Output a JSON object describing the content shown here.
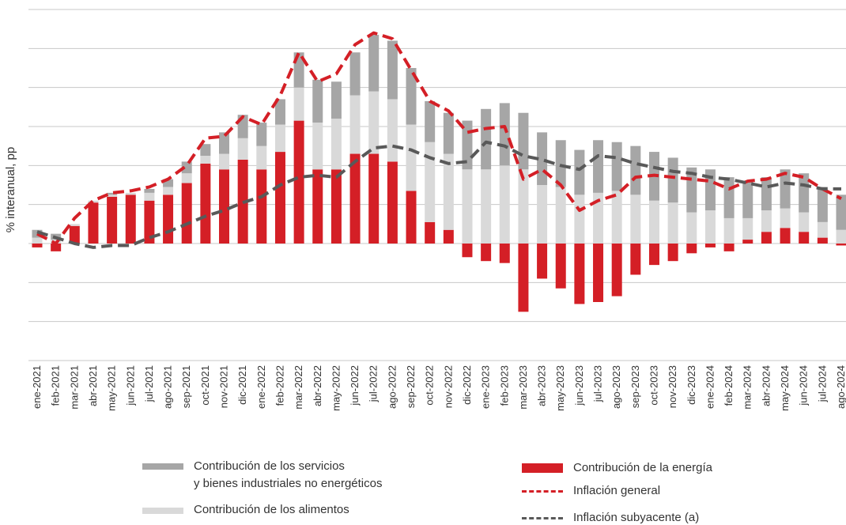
{
  "chart_data": {
    "type": "bar",
    "y_label": "% interanual, pp",
    "categories": [
      "ene-2021",
      "feb-2021",
      "mar-2021",
      "abr-2021",
      "may-2021",
      "jun-2021",
      "jul-2021",
      "ago-2021",
      "sep-2021",
      "oct-2021",
      "nov-2021",
      "dic-2021",
      "ene-2022",
      "feb-2022",
      "mar-2022",
      "abr-2022",
      "may-2022",
      "jun-2022",
      "jul-2022",
      "ago-2022",
      "sep-2022",
      "oct-2022",
      "nov-2022",
      "dic-2022",
      "ene-2023",
      "feb-2023",
      "mar-2023",
      "abr-2023",
      "may-2023",
      "jun-2023",
      "jul-2023",
      "ago-2023",
      "sep-2023",
      "oct-2023",
      "nov-2023",
      "dic-2023",
      "ene-2024",
      "feb-2024",
      "mar-2024",
      "abr-2024",
      "may-2024",
      "jun-2024",
      "jul-2024",
      "ago-2024"
    ],
    "ylim": [
      -6,
      12
    ],
    "yticks": [
      -6,
      -4,
      -2,
      0,
      2,
      4,
      6,
      8,
      10,
      12
    ],
    "grid": true,
    "series": [
      {
        "name": "Contribución de la energía",
        "type": "bar",
        "color": "#d41f26",
        "values": [
          -0.2,
          -0.4,
          0.9,
          2.1,
          2.4,
          2.5,
          2.2,
          2.5,
          3.1,
          4.1,
          3.8,
          4.3,
          3.8,
          4.7,
          6.3,
          3.8,
          3.8,
          4.6,
          4.6,
          4.2,
          2.7,
          1.1,
          0.7,
          -0.7,
          -0.9,
          -1.0,
          -3.5,
          -1.8,
          -2.3,
          -3.1,
          -3.0,
          -2.7,
          -1.6,
          -1.1,
          -0.9,
          -0.5,
          -0.2,
          -0.4,
          0.2,
          0.6,
          0.8,
          0.6,
          0.3,
          -0.1
        ]
      },
      {
        "name": "Contribución de los alimentos",
        "type": "bar",
        "color": "#d9d9d9",
        "values": [
          0.3,
          0.2,
          0.1,
          0.1,
          0.1,
          0.1,
          0.4,
          0.4,
          0.5,
          0.4,
          0.8,
          1.1,
          1.2,
          1.4,
          1.7,
          2.4,
          2.6,
          3.0,
          3.2,
          3.2,
          3.4,
          4.1,
          3.9,
          3.8,
          3.8,
          4.0,
          3.8,
          3.0,
          2.9,
          2.5,
          2.6,
          2.7,
          2.5,
          2.2,
          2.1,
          1.6,
          1.7,
          1.3,
          1.1,
          1.1,
          1.0,
          1.0,
          0.8,
          0.7
        ]
      },
      {
        "name": "Contribución de los servicios\ny bienes industriales no energéticos",
        "type": "bar",
        "color": "#a6a6a6",
        "values": [
          0.4,
          0.3,
          0.0,
          0.0,
          0.1,
          0.0,
          0.2,
          0.4,
          0.6,
          0.6,
          1.1,
          1.2,
          1.2,
          1.3,
          1.8,
          2.2,
          1.9,
          2.2,
          2.9,
          3.0,
          2.9,
          2.1,
          2.1,
          2.5,
          3.1,
          3.2,
          2.9,
          2.7,
          2.4,
          2.3,
          2.7,
          2.5,
          2.5,
          2.5,
          2.3,
          2.3,
          2.1,
          2.1,
          1.9,
          1.7,
          2.0,
          2.0,
          1.8,
          1.8
        ]
      },
      {
        "name": "Inflación general",
        "type": "line",
        "color": "#d41f26",
        "values": [
          0.5,
          0.0,
          1.3,
          2.2,
          2.6,
          2.7,
          2.9,
          3.3,
          4.0,
          5.4,
          5.5,
          6.5,
          6.1,
          7.6,
          9.8,
          8.3,
          8.7,
          10.2,
          10.8,
          10.5,
          8.9,
          7.3,
          6.8,
          5.7,
          5.9,
          6.0,
          3.3,
          3.8,
          3.0,
          1.7,
          2.2,
          2.5,
          3.4,
          3.5,
          3.4,
          3.3,
          3.2,
          2.8,
          3.2,
          3.3,
          3.6,
          3.4,
          2.8,
          2.3
        ]
      },
      {
        "name": "Inflación subyacente (a)",
        "type": "line",
        "color": "#595959",
        "values": [
          0.6,
          0.3,
          0.0,
          -0.2,
          -0.1,
          -0.1,
          0.3,
          0.6,
          1.0,
          1.4,
          1.7,
          2.1,
          2.4,
          3.0,
          3.4,
          3.5,
          3.4,
          4.2,
          4.9,
          5.0,
          4.8,
          4.4,
          4.1,
          4.2,
          5.2,
          5.0,
          4.5,
          4.3,
          4.0,
          3.8,
          4.5,
          4.4,
          4.1,
          3.9,
          3.7,
          3.6,
          3.4,
          3.3,
          3.1,
          2.9,
          3.1,
          3.0,
          2.8,
          2.8
        ]
      }
    ]
  }
}
